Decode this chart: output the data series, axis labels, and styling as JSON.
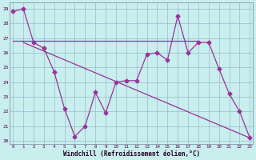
{
  "xlabel": "Windchill (Refroidissement éolien,°C)",
  "background_color": "#c8eeee",
  "grid_color": "#99bbcc",
  "line_color": "#993399",
  "x_values": [
    0,
    1,
    2,
    3,
    4,
    5,
    6,
    7,
    8,
    9,
    10,
    11,
    12,
    13,
    14,
    15,
    16,
    17,
    18,
    19,
    20,
    21,
    22,
    23
  ],
  "series_jagged": [
    28.8,
    29.0,
    26.7,
    26.3,
    24.7,
    22.2,
    20.3,
    21.0,
    23.3,
    21.9,
    24.0,
    24.1,
    24.1,
    25.9,
    26.0,
    25.5,
    28.5,
    26.0,
    26.7,
    26.7,
    24.9,
    23.2,
    22.0,
    20.2
  ],
  "series_flat": [
    [
      0,
      26.8
    ],
    [
      18,
      26.8
    ]
  ],
  "series_diag": [
    [
      1,
      26.7
    ],
    [
      23,
      20.2
    ]
  ],
  "ylim": [
    20,
    29
  ],
  "yticks": [
    20,
    21,
    22,
    23,
    24,
    25,
    26,
    27,
    28,
    29
  ],
  "xticks": [
    0,
    1,
    2,
    3,
    4,
    5,
    6,
    7,
    8,
    9,
    10,
    11,
    12,
    13,
    14,
    15,
    16,
    17,
    18,
    19,
    20,
    21,
    22,
    23
  ]
}
